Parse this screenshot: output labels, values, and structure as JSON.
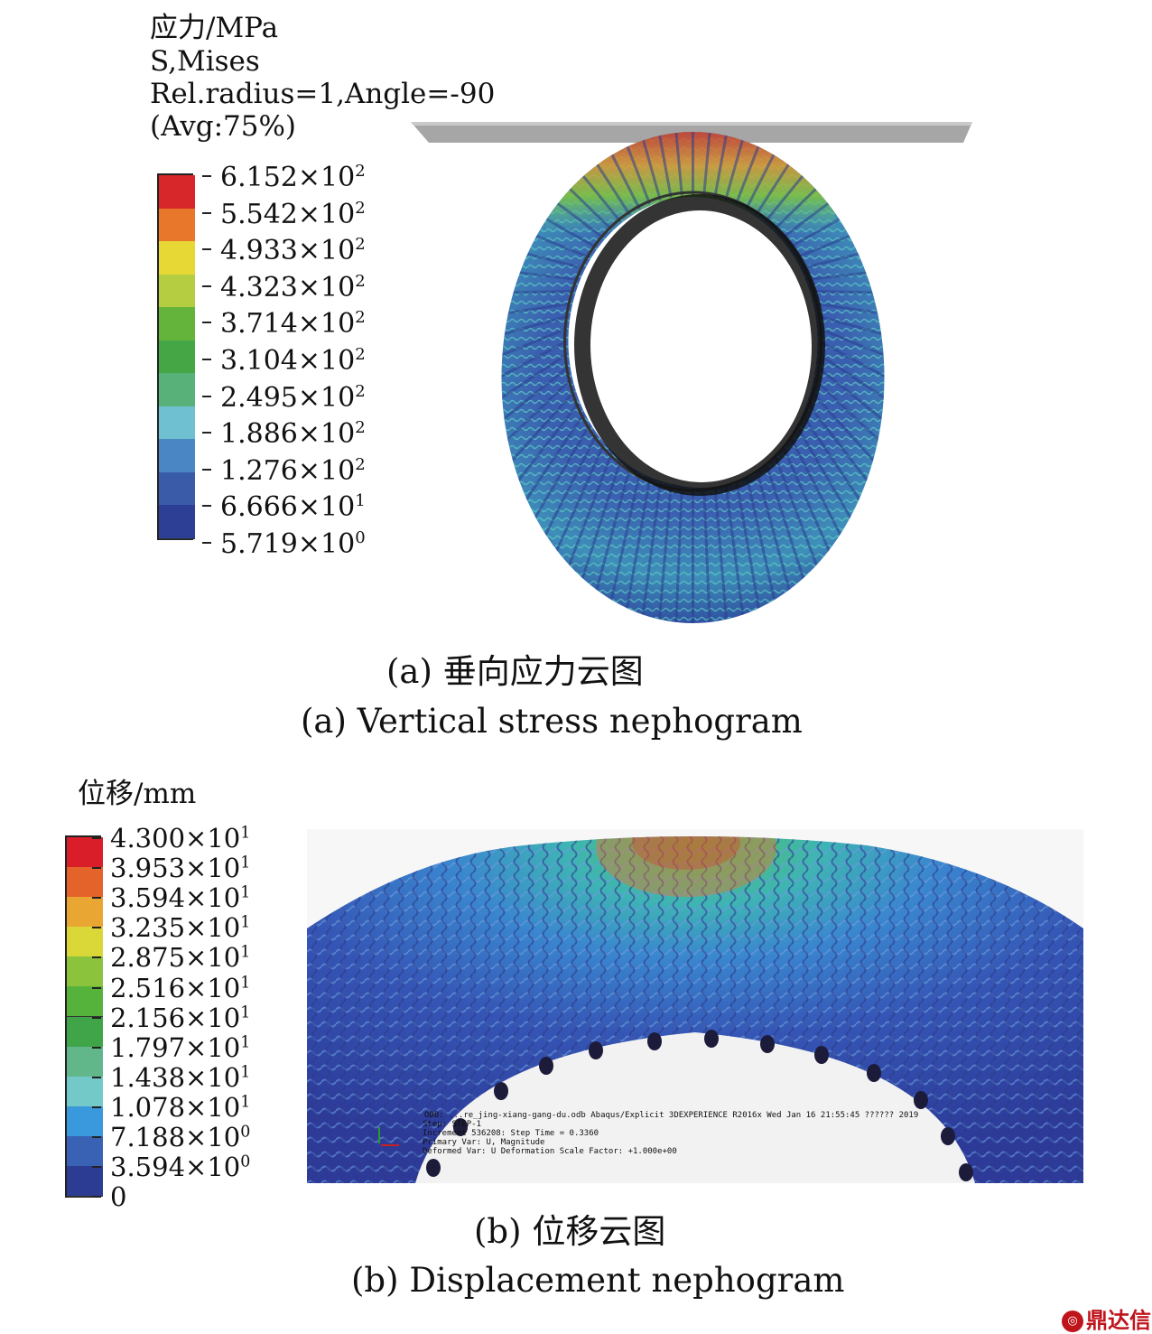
{
  "figure_a": {
    "header": [
      "应力/MPa",
      "S,Mises",
      "Rel.radius=1,Angle=-90",
      "(Avg:75%)"
    ],
    "legend_colors": [
      "#d7272a",
      "#e9772b",
      "#e8d835",
      "#b5cd40",
      "#64b43c",
      "#44a644",
      "#57b178",
      "#6fc0d0",
      "#4a86c4",
      "#3a5ca8",
      "#2c3f94"
    ],
    "legend_labels": [
      {
        "m": "6.152×10",
        "e": "2"
      },
      {
        "m": "5.542×10",
        "e": "2"
      },
      {
        "m": "4.933×10",
        "e": "2"
      },
      {
        "m": "4.323×10",
        "e": "2"
      },
      {
        "m": "3.714×10",
        "e": "2"
      },
      {
        "m": "3.104×10",
        "e": "2"
      },
      {
        "m": "2.495×10",
        "e": "2"
      },
      {
        "m": "1.886×10",
        "e": "2"
      },
      {
        "m": "1.276×10",
        "e": "2"
      },
      {
        "m": "6.666×10",
        "e": "1"
      },
      {
        "m": "5.719×10",
        "e": "0"
      }
    ],
    "caption_cn": "(a) 垂向应力云图",
    "caption_en": "(a) Vertical stress nephogram"
  },
  "figure_b": {
    "header": "位移/mm",
    "legend_colors": [
      "#d91e2a",
      "#e4632a",
      "#eaa632",
      "#d9d838",
      "#8bc43c",
      "#55b23a",
      "#3fa548",
      "#61b68a",
      "#72c9c7",
      "#3a99dc",
      "#3a62b4",
      "#2c3c92"
    ],
    "legend_labels": [
      {
        "m": "4.300×10",
        "e": "1"
      },
      {
        "m": "3.953×10",
        "e": "1"
      },
      {
        "m": "3.594×10",
        "e": "1"
      },
      {
        "m": "3.235×10",
        "e": "1"
      },
      {
        "m": "2.875×10",
        "e": "1"
      },
      {
        "m": "2.516×10",
        "e": "1"
      },
      {
        "m": "2.156×10",
        "e": "1"
      },
      {
        "m": "1.797×10",
        "e": "1"
      },
      {
        "m": "1.438×10",
        "e": "1"
      },
      {
        "m": "1.078×10",
        "e": "1"
      },
      {
        "m": "7.188×10",
        "e": "0"
      },
      {
        "m": "3.594×10",
        "e": "0"
      },
      {
        "m": "0",
        "e": ""
      }
    ],
    "overlay": [
      "ODB: ...re_jing-xiang-gang-du.odb    Abaqus/Explicit 3DEXPERIENCE R2016x    Wed Jan 16 21:55:45 ?????? 2019",
      "Step: STEP-1",
      "Increment    536208: Step Time =    0.3360",
      "Primary Var: U, Magnitude",
      "Deformed Var: U   Deformation Scale Factor: +1.000e+00"
    ],
    "caption_cn": "(b) 位移云图",
    "caption_en": "(b) Displacement nephogram"
  },
  "watermark": "鼎达信"
}
